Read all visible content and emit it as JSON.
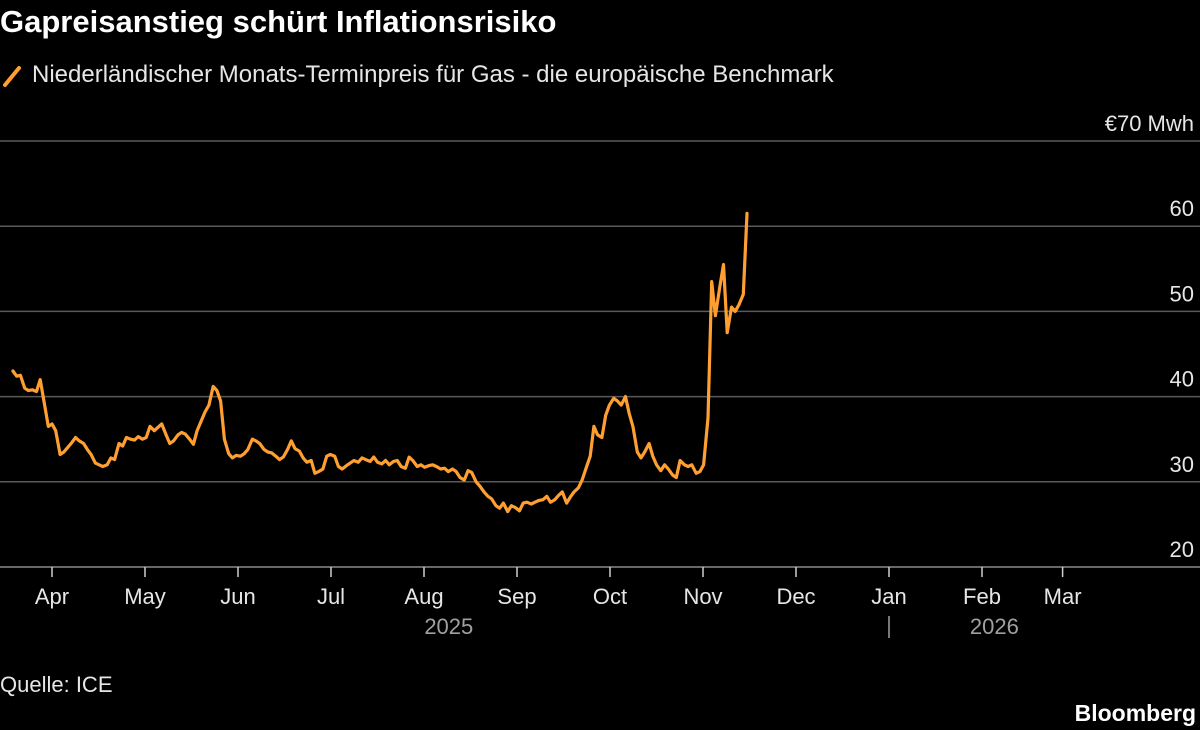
{
  "header": {
    "title": "Gapreisanstieg schürt Inflationsrisiko",
    "legend_label": "Niederländischer Monats-Terminpreis für Gas - die europäische Benchmark"
  },
  "footer": {
    "source": "Quelle: ICE",
    "brand": "Bloomberg"
  },
  "colors": {
    "background": "#000000",
    "series": "#ff9f32",
    "gridline": "#5a5a5a",
    "text": "#e6e6e6"
  },
  "chart_data": {
    "type": "line",
    "title": "Gapreisanstieg schürt Inflationsrisiko",
    "xlabel": "",
    "ylabel": "€70 Mwh",
    "ylim": [
      20,
      70
    ],
    "y_ticks": [
      {
        "value": 70,
        "label": "€70 Mwh"
      },
      {
        "value": 60,
        "label": "60"
      },
      {
        "value": 50,
        "label": "50"
      },
      {
        "value": 40,
        "label": "40"
      },
      {
        "value": 30,
        "label": "30"
      },
      {
        "value": 20,
        "label": "20"
      }
    ],
    "x_range_days": [
      -3,
      175
    ],
    "x_ticks": [
      {
        "day": 0,
        "label": "Apr"
      },
      {
        "day": 15,
        "label": "May"
      },
      {
        "day": 30,
        "label": "Jun"
      },
      {
        "day": 45,
        "label": "Jul"
      },
      {
        "day": 60,
        "label": "Aug"
      },
      {
        "day": 75,
        "label": "Sep"
      },
      {
        "day": 90,
        "label": "Oct"
      },
      {
        "day": 105,
        "label": "Nov"
      },
      {
        "day": 120,
        "label": "Dec"
      },
      {
        "day": 135,
        "label": "Jan"
      },
      {
        "day": 150,
        "label": "Feb"
      },
      {
        "day": 163,
        "label": "Mar"
      }
    ],
    "year_labels": [
      {
        "label": "2025",
        "day": 64
      },
      {
        "label": "2026",
        "day": 152
      }
    ],
    "year_divider_day": 135,
    "grid": true,
    "legend": "top-left",
    "series": [
      {
        "name": "Niederländischer Monats-Terminpreis für Gas - die europäische Benchmark",
        "points": [
          [
            -6.3,
            43.0
          ],
          [
            -5.7,
            42.4
          ],
          [
            -5.1,
            42.5
          ],
          [
            -4.4,
            41.0
          ],
          [
            -3.8,
            40.7
          ],
          [
            -3.2,
            40.8
          ],
          [
            -2.5,
            40.6
          ],
          [
            -1.9,
            42.0
          ],
          [
            -1.3,
            39.5
          ],
          [
            -0.6,
            36.5
          ],
          [
            0.0,
            36.8
          ],
          [
            0.6,
            36.0
          ],
          [
            1.3,
            33.2
          ],
          [
            1.9,
            33.5
          ],
          [
            2.5,
            34.0
          ],
          [
            3.2,
            34.6
          ],
          [
            3.8,
            35.2
          ],
          [
            4.4,
            34.8
          ],
          [
            5.1,
            34.5
          ],
          [
            5.7,
            33.8
          ],
          [
            6.3,
            33.2
          ],
          [
            7.0,
            32.2
          ],
          [
            7.6,
            32.0
          ],
          [
            8.2,
            31.8
          ],
          [
            8.9,
            32.0
          ],
          [
            9.5,
            32.8
          ],
          [
            10.1,
            32.6
          ],
          [
            10.8,
            34.5
          ],
          [
            11.4,
            34.2
          ],
          [
            12.0,
            35.2
          ],
          [
            12.7,
            35.0
          ],
          [
            13.3,
            34.9
          ],
          [
            13.9,
            35.3
          ],
          [
            14.6,
            35.0
          ],
          [
            15.2,
            35.2
          ],
          [
            15.8,
            36.5
          ],
          [
            16.5,
            36.0
          ],
          [
            17.1,
            36.4
          ],
          [
            17.7,
            36.8
          ],
          [
            18.4,
            35.5
          ],
          [
            19.0,
            34.5
          ],
          [
            19.6,
            34.8
          ],
          [
            20.3,
            35.5
          ],
          [
            20.9,
            35.8
          ],
          [
            21.5,
            35.6
          ],
          [
            22.2,
            35.0
          ],
          [
            22.8,
            34.4
          ],
          [
            23.4,
            36.0
          ],
          [
            24.1,
            37.2
          ],
          [
            24.7,
            38.2
          ],
          [
            25.3,
            39.0
          ],
          [
            26.0,
            41.2
          ],
          [
            26.6,
            40.7
          ],
          [
            27.2,
            39.5
          ],
          [
            27.8,
            35.0
          ],
          [
            28.5,
            33.3
          ],
          [
            29.1,
            32.8
          ],
          [
            29.7,
            33.1
          ],
          [
            30.4,
            33.0
          ],
          [
            31.0,
            33.3
          ],
          [
            31.6,
            33.8
          ],
          [
            32.3,
            35.0
          ],
          [
            32.9,
            34.8
          ],
          [
            33.5,
            34.5
          ],
          [
            34.2,
            33.8
          ],
          [
            34.8,
            33.5
          ],
          [
            35.4,
            33.4
          ],
          [
            36.1,
            33.0
          ],
          [
            36.7,
            32.6
          ],
          [
            37.3,
            32.9
          ],
          [
            38.0,
            33.8
          ],
          [
            38.6,
            34.8
          ],
          [
            39.2,
            33.9
          ],
          [
            39.9,
            33.6
          ],
          [
            40.5,
            32.8
          ],
          [
            41.1,
            32.3
          ],
          [
            41.8,
            32.5
          ],
          [
            42.4,
            31.0
          ],
          [
            43.0,
            31.2
          ],
          [
            43.7,
            31.5
          ],
          [
            44.3,
            33.0
          ],
          [
            44.9,
            33.2
          ],
          [
            45.6,
            33.0
          ],
          [
            46.2,
            31.8
          ],
          [
            46.8,
            31.5
          ],
          [
            47.5,
            31.9
          ],
          [
            48.1,
            32.2
          ],
          [
            48.7,
            32.5
          ],
          [
            49.4,
            32.3
          ],
          [
            50.0,
            32.8
          ],
          [
            50.6,
            32.6
          ],
          [
            51.3,
            32.4
          ],
          [
            51.9,
            32.9
          ],
          [
            52.5,
            32.3
          ],
          [
            53.2,
            32.1
          ],
          [
            53.8,
            32.5
          ],
          [
            54.4,
            32.0
          ],
          [
            55.1,
            32.4
          ],
          [
            55.7,
            32.5
          ],
          [
            56.3,
            31.8
          ],
          [
            57.0,
            31.6
          ],
          [
            57.6,
            32.9
          ],
          [
            58.2,
            32.5
          ],
          [
            58.9,
            31.8
          ],
          [
            59.5,
            32.0
          ],
          [
            60.1,
            31.7
          ],
          [
            60.8,
            31.9
          ],
          [
            61.4,
            32.0
          ],
          [
            62.0,
            31.8
          ],
          [
            62.7,
            31.5
          ],
          [
            63.3,
            31.6
          ],
          [
            63.9,
            31.2
          ],
          [
            64.6,
            31.5
          ],
          [
            65.2,
            31.2
          ],
          [
            65.8,
            30.5
          ],
          [
            66.5,
            30.2
          ],
          [
            67.1,
            31.3
          ],
          [
            67.7,
            31.1
          ],
          [
            68.4,
            30.0
          ],
          [
            69.0,
            29.5
          ],
          [
            69.7,
            28.8
          ],
          [
            70.3,
            28.3
          ],
          [
            70.9,
            28.0
          ],
          [
            71.6,
            27.2
          ],
          [
            72.2,
            26.9
          ],
          [
            72.8,
            27.5
          ],
          [
            73.5,
            26.5
          ],
          [
            74.1,
            27.2
          ],
          [
            74.7,
            27.0
          ],
          [
            75.4,
            26.6
          ],
          [
            76.0,
            27.5
          ],
          [
            76.6,
            27.6
          ],
          [
            77.3,
            27.4
          ],
          [
            77.9,
            27.6
          ],
          [
            78.5,
            27.8
          ],
          [
            79.2,
            27.9
          ],
          [
            79.8,
            28.3
          ],
          [
            80.4,
            27.6
          ],
          [
            81.1,
            27.9
          ],
          [
            81.7,
            28.4
          ],
          [
            82.3,
            28.8
          ],
          [
            83.0,
            27.5
          ],
          [
            83.6,
            28.2
          ],
          [
            84.2,
            28.8
          ],
          [
            84.9,
            29.3
          ],
          [
            85.5,
            30.2
          ],
          [
            86.1,
            31.5
          ],
          [
            86.8,
            33.0
          ],
          [
            87.4,
            36.5
          ],
          [
            88.0,
            35.5
          ],
          [
            88.7,
            35.2
          ],
          [
            89.3,
            37.8
          ],
          [
            89.9,
            39.0
          ],
          [
            90.6,
            39.8
          ],
          [
            91.2,
            39.5
          ],
          [
            91.8,
            39.0
          ],
          [
            92.5,
            40.0
          ],
          [
            93.1,
            38.0
          ],
          [
            93.7,
            36.5
          ],
          [
            94.4,
            33.5
          ],
          [
            95.0,
            32.8
          ],
          [
            95.6,
            33.5
          ],
          [
            96.3,
            34.5
          ],
          [
            96.9,
            33.0
          ],
          [
            97.5,
            32.0
          ],
          [
            98.2,
            31.3
          ],
          [
            98.8,
            32.0
          ],
          [
            99.4,
            31.5
          ],
          [
            100.1,
            30.8
          ],
          [
            100.7,
            30.5
          ],
          [
            101.3,
            32.5
          ],
          [
            102.0,
            32.0
          ],
          [
            102.6,
            31.8
          ],
          [
            103.2,
            32.0
          ],
          [
            103.9,
            31.0
          ],
          [
            104.5,
            31.2
          ],
          [
            105.1,
            32.0
          ],
          [
            105.8,
            37.5
          ],
          [
            106.4,
            53.5
          ],
          [
            107.0,
            49.5
          ],
          [
            107.7,
            52.8
          ],
          [
            108.3,
            55.5
          ],
          [
            108.9,
            47.5
          ],
          [
            109.6,
            50.5
          ],
          [
            110.2,
            50.0
          ],
          [
            110.8,
            50.8
          ],
          [
            111.5,
            52.0
          ],
          [
            112.1,
            61.5
          ]
        ]
      }
    ]
  }
}
